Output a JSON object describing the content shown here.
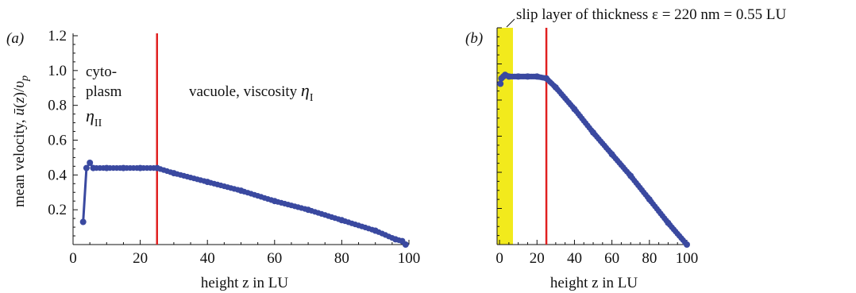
{
  "colors": {
    "series": "#3a49a0",
    "divider": "#e02020",
    "slip_layer": "#f2ea1c",
    "axis": "#111111"
  },
  "chart_data": [
    {
      "type": "scatter",
      "panel_label": "(a)",
      "xlabel": "height z in LU",
      "ylabel": "mean velocity, ū(z)/v_p",
      "xlim": [
        0,
        100
      ],
      "ylim": [
        0,
        1.2
      ],
      "x_ticks": [
        0,
        20,
        40,
        60,
        80,
        100
      ],
      "y_ticks": [
        0.2,
        0.4,
        0.6,
        0.8,
        1.0,
        1.2
      ],
      "y_tick_labels": [
        "0.2",
        "0.4",
        "0.6",
        "0.8",
        "1.0",
        "1.2"
      ],
      "vline_x": 25,
      "annotations": {
        "cytoplasm_line1": "cyto-",
        "cytoplasm_line2": "plasm",
        "cytoplasm_symbol": "η",
        "cytoplasm_subscript": "II",
        "vacuole_text": "vacuole, viscosity ",
        "vacuole_symbol": "η",
        "vacuole_subscript": "I"
      },
      "series": [
        {
          "x": [
            3,
            4,
            5,
            6,
            10,
            15,
            20,
            25,
            30,
            40,
            50,
            60,
            70,
            80,
            90,
            96,
            98,
            99
          ],
          "y": [
            0.13,
            0.44,
            0.47,
            0.44,
            0.44,
            0.44,
            0.44,
            0.44,
            0.41,
            0.36,
            0.31,
            0.25,
            0.2,
            0.14,
            0.08,
            0.03,
            0.02,
            0.0
          ]
        }
      ]
    },
    {
      "type": "scatter",
      "panel_label": "(b)",
      "xlabel": "height z in LU",
      "xlim": [
        0,
        100
      ],
      "ylim": [
        0,
        1.2
      ],
      "x_ticks": [
        0,
        20,
        40,
        60,
        80,
        100
      ],
      "vline_x": 25,
      "slip_layer_label": "slip layer of thickness ε = 220 nm = 0.55 LU",
      "series": [
        {
          "x": [
            0.5,
            1,
            2,
            3,
            5,
            10,
            15,
            20,
            25,
            30,
            40,
            50,
            60,
            70,
            80,
            90,
            100
          ],
          "y": [
            0.89,
            0.92,
            0.93,
            0.94,
            0.93,
            0.93,
            0.93,
            0.93,
            0.92,
            0.87,
            0.75,
            0.62,
            0.5,
            0.38,
            0.25,
            0.12,
            0.0
          ]
        }
      ]
    }
  ]
}
